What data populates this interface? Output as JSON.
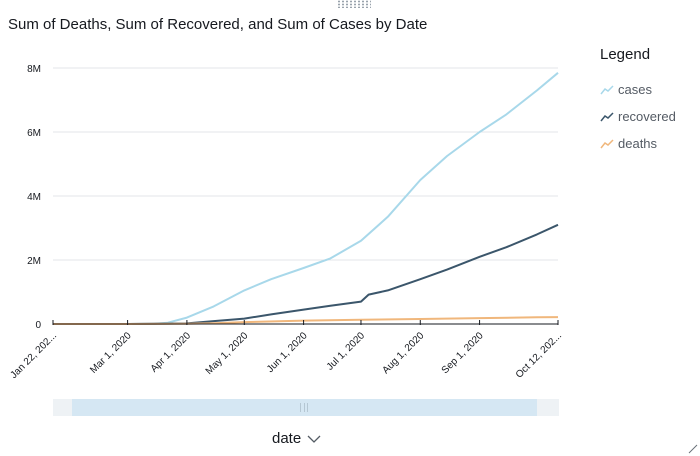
{
  "title": "Sum of Deaths, Sum of Recovered, and Sum of Cases by Date",
  "legend": {
    "title": "Legend",
    "items": [
      {
        "label": "cases",
        "color": "#a8d8ea"
      },
      {
        "label": "recovered",
        "color": "#3b566b"
      },
      {
        "label": "deaths",
        "color": "#f0b77c"
      }
    ]
  },
  "x_field": {
    "label": "date",
    "icon": "chevron-down-icon"
  },
  "chart_data": {
    "type": "line",
    "title": "Sum of Deaths, Sum of Recovered, and Sum of Cases by Date",
    "xlabel": "date",
    "ylabel": "",
    "x_range": [
      "2020-01-22",
      "2020-10-12"
    ],
    "ylim": [
      0,
      8000000
    ],
    "y_ticks": [
      0,
      2000000,
      4000000,
      6000000,
      8000000
    ],
    "y_tick_labels": [
      "0",
      "2M",
      "4M",
      "6M",
      "8M"
    ],
    "x_ticks": [
      "2020-01-22",
      "2020-03-01",
      "2020-04-01",
      "2020-05-01",
      "2020-06-01",
      "2020-07-01",
      "2020-08-01",
      "2020-09-01",
      "2020-10-12"
    ],
    "x_tick_labels": [
      "Jan 22, 202...",
      "Mar 1, 2020",
      "Apr 1, 2020",
      "May 1, 2020",
      "Jun 1, 2020",
      "Jul 1, 2020",
      "Aug 1, 2020",
      "Sep 1, 2020",
      "Oct 12, 202..."
    ],
    "grid": "horizontal",
    "legend_position": "right",
    "series": [
      {
        "name": "cases",
        "color": "#a8d8ea",
        "points": [
          [
            "2020-01-22",
            0
          ],
          [
            "2020-03-01",
            0
          ],
          [
            "2020-03-15",
            5000
          ],
          [
            "2020-03-22",
            40000
          ],
          [
            "2020-04-01",
            200000
          ],
          [
            "2020-04-15",
            550000
          ],
          [
            "2020-05-01",
            1050000
          ],
          [
            "2020-05-15",
            1400000
          ],
          [
            "2020-06-01",
            1750000
          ],
          [
            "2020-06-15",
            2050000
          ],
          [
            "2020-07-01",
            2600000
          ],
          [
            "2020-07-15",
            3350000
          ],
          [
            "2020-08-01",
            4500000
          ],
          [
            "2020-08-15",
            5250000
          ],
          [
            "2020-09-01",
            6000000
          ],
          [
            "2020-09-15",
            6550000
          ],
          [
            "2020-10-01",
            7300000
          ],
          [
            "2020-10-12",
            7850000
          ]
        ]
      },
      {
        "name": "recovered",
        "color": "#3b566b",
        "points": [
          [
            "2020-01-22",
            0
          ],
          [
            "2020-03-01",
            0
          ],
          [
            "2020-04-01",
            20000
          ],
          [
            "2020-04-15",
            90000
          ],
          [
            "2020-05-01",
            170000
          ],
          [
            "2020-05-15",
            300000
          ],
          [
            "2020-06-01",
            450000
          ],
          [
            "2020-06-15",
            570000
          ],
          [
            "2020-07-01",
            700000
          ],
          [
            "2020-07-05",
            920000
          ],
          [
            "2020-07-15",
            1050000
          ],
          [
            "2020-08-01",
            1400000
          ],
          [
            "2020-08-15",
            1700000
          ],
          [
            "2020-09-01",
            2100000
          ],
          [
            "2020-09-15",
            2400000
          ],
          [
            "2020-10-01",
            2800000
          ],
          [
            "2020-10-12",
            3100000
          ]
        ]
      },
      {
        "name": "deaths",
        "color": "#f0b77c",
        "points": [
          [
            "2020-01-22",
            0
          ],
          [
            "2020-03-01",
            0
          ],
          [
            "2020-04-01",
            5000
          ],
          [
            "2020-04-15",
            25000
          ],
          [
            "2020-05-01",
            60000
          ],
          [
            "2020-06-01",
            105000
          ],
          [
            "2020-07-01",
            130000
          ],
          [
            "2020-08-01",
            155000
          ],
          [
            "2020-09-01",
            185000
          ],
          [
            "2020-10-01",
            210000
          ],
          [
            "2020-10-12",
            215000
          ]
        ]
      }
    ]
  }
}
